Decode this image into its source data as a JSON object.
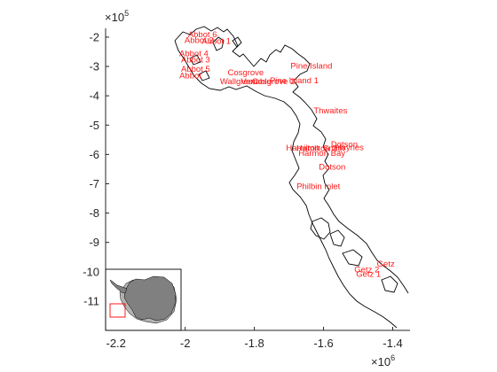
{
  "chart_data": {
    "type": "scatter",
    "title": "",
    "xlabel": "",
    "ylabel": "",
    "xlim": [
      -2230000,
      -1350000
    ],
    "ylim": [
      -1200000,
      -170000
    ],
    "xticks": [
      -2.2,
      -2,
      -1.8,
      -1.6,
      -1.4
    ],
    "xtick_labels": [
      "-2.2",
      "-2",
      "-1.8",
      "-1.6",
      "-1.4"
    ],
    "yticks": [
      -2,
      -3,
      -4,
      -5,
      -6,
      -7,
      -8,
      -9,
      -10,
      -11
    ],
    "ytick_labels": [
      "-2",
      "-3",
      "-4",
      "-5",
      "-6",
      "-7",
      "-8",
      "-9",
      "-10",
      "-11"
    ],
    "x_multiplier": "×10",
    "x_multiplier_exp": "6",
    "y_multiplier": "×10",
    "y_multiplier_exp": "5",
    "grid": false,
    "label_color": "#ff1a1a",
    "coast_color": "#000000",
    "inset_land_color": "#808080",
    "inset_shelf_color": "#b3b3b3",
    "inset_box_color": "#ff0000",
    "points": [
      {
        "label": "Abbot 6",
        "x": -1950000,
        "y": -200000
      },
      {
        "label": "Abbot 2",
        "x": -1960000,
        "y": -220000
      },
      {
        "label": "Abbot 1",
        "x": -1910000,
        "y": -223000
      },
      {
        "label": "Abbot 4",
        "x": -1975000,
        "y": -265000
      },
      {
        "label": "Abbot 3",
        "x": -1970000,
        "y": -287000
      },
      {
        "label": "Abbot 5",
        "x": -1970000,
        "y": -318000
      },
      {
        "label": "Abbot",
        "x": -1985000,
        "y": -340000
      },
      {
        "label": "Cosgrove",
        "x": -1825000,
        "y": -330000
      },
      {
        "label": "Pine Island",
        "x": -1635000,
        "y": -308000
      },
      {
        "label": "Wallgreen",
        "x": -1845000,
        "y": -360000
      },
      {
        "label": "Venable",
        "x": -1795000,
        "y": -360000
      },
      {
        "label": "Cosgrove 2",
        "x": -1745000,
        "y": -360000
      },
      {
        "label": "Pine Island 1",
        "x": -1685000,
        "y": -357000
      },
      {
        "label": "Thwaites",
        "x": -1580000,
        "y": -460000
      },
      {
        "label": "Dotson",
        "x": -1540000,
        "y": -575000
      },
      {
        "label": "Hamilton",
        "x": -1660000,
        "y": -587000
      },
      {
        "label": "Hamilton 2",
        "x": -1620000,
        "y": -588000
      },
      {
        "label": "Smith",
        "x": -1570000,
        "y": -588000
      },
      {
        "label": "Haynes",
        "x": -1525000,
        "y": -586000
      },
      {
        "label": "Harmon Bay",
        "x": -1605000,
        "y": -605000
      },
      {
        "label": "Dotson",
        "x": -1575000,
        "y": -652000
      },
      {
        "label": "Philbin Inlet",
        "x": -1615000,
        "y": -718000
      },
      {
        "label": "Getz",
        "x": -1420000,
        "y": -982000
      },
      {
        "label": "Getz 2",
        "x": -1475000,
        "y": -1002000
      },
      {
        "label": "Getz 1",
        "x": -1470000,
        "y": -1018000
      }
    ]
  }
}
